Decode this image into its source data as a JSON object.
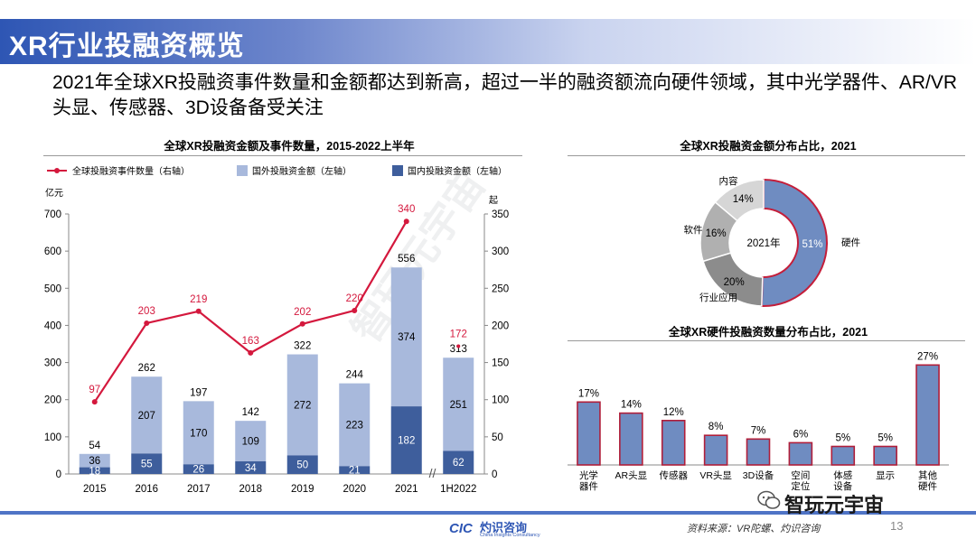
{
  "banner": {
    "title": "XR行业投融资概览"
  },
  "headline": "2021年全球XR投融资事件数量和金额都达到新高，超过一半的融资额流向硬件领域，其中光学器件、AR/VR头显、传感器、3D设备备受关注",
  "watermark": "智玩元宇宙",
  "colors": {
    "foreign": "#a8b9dc",
    "domestic": "#3e5e9c",
    "line": "#d4183d",
    "hardware": "#6f8cc1",
    "accent_line": "#4f74c6"
  },
  "chart_data": [
    {
      "type": "bar",
      "title": "全球XR投融资金额及事件数量，2015-2022上半年",
      "legend": [
        "全球投融资事件数量（右轴）",
        "国外投融资金额（左轴）",
        "国内投融资金额（左轴）"
      ],
      "left_unit": "亿元",
      "right_unit": "起",
      "categories": [
        "2015",
        "2016",
        "2017",
        "2018",
        "2019",
        "2020",
        "2021",
        "1H2022"
      ],
      "series": [
        {
          "name": "国内投融资金额（左轴）",
          "values": [
            18,
            55,
            26,
            34,
            50,
            21,
            182,
            62
          ]
        },
        {
          "name": "国外投融资金额（左轴）",
          "values": [
            36,
            207,
            170,
            109,
            272,
            223,
            374,
            251
          ]
        },
        {
          "name": "全球投融资事件数量（右轴）",
          "values": [
            97,
            203,
            219,
            163,
            202,
            220,
            340,
            172
          ]
        }
      ],
      "totals": [
        54,
        262,
        197,
        142,
        322,
        244,
        556,
        313
      ],
      "ylim": [
        0,
        700
      ],
      "yticks": [
        0,
        100,
        200,
        300,
        400,
        500,
        600,
        700
      ],
      "y2lim": [
        0,
        350
      ],
      "y2ticks": [
        0,
        50,
        100,
        150,
        200,
        250,
        300,
        350
      ]
    },
    {
      "type": "pie",
      "title": "全球XR投融资金额分布占比，2021",
      "center_label": "2021年",
      "slices": [
        {
          "label": "硬件",
          "value": 51,
          "text": "51%"
        },
        {
          "label": "行业应用",
          "value": 20,
          "text": "20%"
        },
        {
          "label": "软件",
          "value": 16,
          "text": "16%"
        },
        {
          "label": "内容",
          "value": 14,
          "text": "14%"
        }
      ]
    },
    {
      "type": "bar",
      "title": "全球XR硬件投融资数量分布占比，2021",
      "categories": [
        "光学\n器件",
        "AR头显",
        "传感器",
        "VR头显",
        "3D设备",
        "空间\n定位",
        "体感\n设备",
        "显示",
        "其他\n硬件"
      ],
      "values": [
        17,
        14,
        12,
        8,
        7,
        6,
        5,
        5,
        27
      ],
      "labels": [
        "17%",
        "14%",
        "12%",
        "8%",
        "7%",
        "6%",
        "5%",
        "5%",
        "27%"
      ],
      "ylim": [
        0,
        30
      ]
    }
  ],
  "footer": {
    "logo_mark": "CIC",
    "logo_text": "灼识咨询",
    "logo_sub": "China Insights Consultancy",
    "source": "资料来源：VR陀螺、灼识咨询",
    "page": "13",
    "wechat": "智玩元宇宙"
  }
}
